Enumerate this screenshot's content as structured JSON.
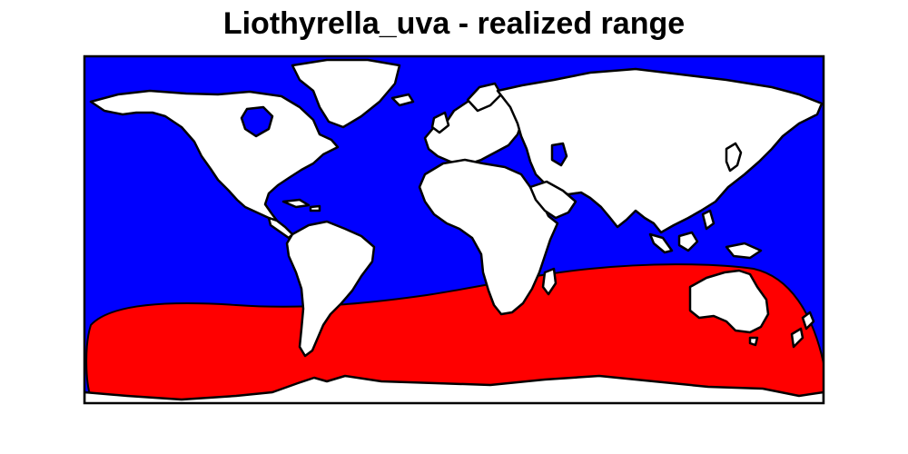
{
  "title": "Liothyrella_uva - realized range",
  "colors": {
    "ocean": "#0000ff",
    "range": "#ff0000",
    "land": "#ffffff",
    "outline": "#000000"
  },
  "map": {
    "projection": "equirectangular",
    "extent_lon": [
      -180,
      180
    ],
    "extent_lat": [
      -65,
      90
    ],
    "layers": [
      "ocean",
      "realized-range",
      "land"
    ]
  }
}
